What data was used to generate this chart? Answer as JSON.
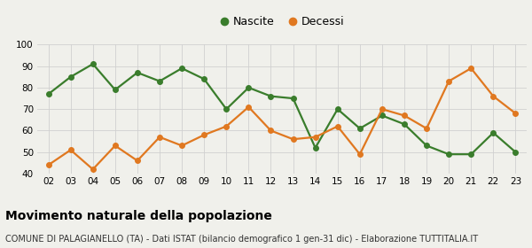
{
  "years": [
    "02",
    "03",
    "04",
    "05",
    "06",
    "07",
    "08",
    "09",
    "10",
    "11",
    "12",
    "13",
    "14",
    "15",
    "16",
    "17",
    "18",
    "19",
    "20",
    "21",
    "22",
    "23"
  ],
  "nascite": [
    77,
    85,
    91,
    79,
    87,
    83,
    89,
    84,
    70,
    80,
    76,
    75,
    52,
    70,
    61,
    67,
    63,
    53,
    49,
    49,
    59,
    50
  ],
  "decessi": [
    44,
    51,
    42,
    53,
    46,
    57,
    53,
    58,
    62,
    71,
    60,
    56,
    57,
    62,
    49,
    70,
    67,
    61,
    83,
    89,
    76,
    68
  ],
  "nascite_color": "#3a7d2c",
  "decessi_color": "#e07820",
  "background_color": "#f0f0eb",
  "grid_color": "#d0d0d0",
  "ylim": [
    40,
    100
  ],
  "yticks": [
    40,
    50,
    60,
    70,
    80,
    90,
    100
  ],
  "title": "Movimento naturale della popolazione",
  "subtitle": "COMUNE DI PALAGIANELLO (TA) - Dati ISTAT (bilancio demografico 1 gen-31 dic) - Elaborazione TUTTITALIA.IT",
  "legend_nascite": "Nascite",
  "legend_decessi": "Decessi",
  "title_fontsize": 10,
  "subtitle_fontsize": 7,
  "marker_size": 4,
  "line_width": 1.6
}
